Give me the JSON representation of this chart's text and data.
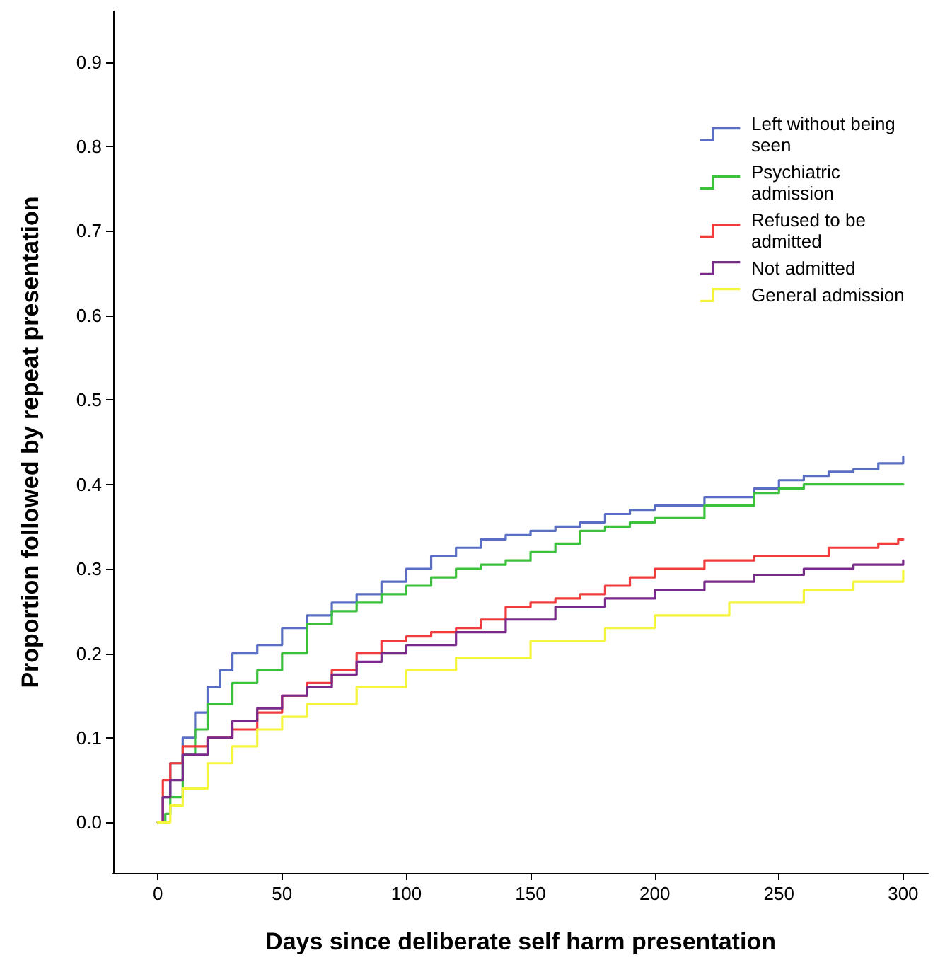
{
  "chart_data": {
    "type": "step",
    "xlabel": "Days since deliberate self harm presentation",
    "ylabel": "Proportion followed by repeat presentation",
    "xlim": [
      -18,
      310
    ],
    "ylim": [
      -0.06,
      0.96
    ],
    "xticks": [
      0,
      50,
      100,
      150,
      200,
      250,
      300
    ],
    "yticks": [
      {
        "value": 0,
        "label": "0.0"
      },
      {
        "value": 0.1,
        "label": "0.1"
      },
      {
        "value": 0.2,
        "label": "0.2"
      },
      {
        "value": 0.3,
        "label": "0.3"
      },
      {
        "value": 0.4,
        "label": "0.4"
      },
      {
        "value": 0.5,
        "label": "0.5"
      },
      {
        "value": 0.6,
        "label": "0.6"
      },
      {
        "value": 0.7,
        "label": "0.7"
      },
      {
        "value": 0.8,
        "label": "0.8"
      },
      {
        "value": 0.9,
        "label": "0.9"
      }
    ],
    "legend": "top right",
    "marker": "none",
    "line_style": "solid",
    "series": [
      {
        "name": "Left without being seen",
        "color": "#5a6fc4",
        "x": [
          0,
          2,
          5,
          10,
          15,
          20,
          25,
          30,
          40,
          50,
          60,
          70,
          80,
          90,
          100,
          110,
          120,
          130,
          140,
          150,
          160,
          170,
          180,
          190,
          200,
          220,
          240,
          250,
          260,
          270,
          280,
          290,
          300
        ],
        "values": [
          0,
          0.03,
          0.07,
          0.1,
          0.13,
          0.16,
          0.18,
          0.2,
          0.21,
          0.23,
          0.245,
          0.26,
          0.27,
          0.285,
          0.3,
          0.315,
          0.325,
          0.335,
          0.34,
          0.345,
          0.35,
          0.355,
          0.365,
          0.37,
          0.375,
          0.385,
          0.395,
          0.405,
          0.41,
          0.415,
          0.418,
          0.425,
          0.433
        ]
      },
      {
        "name": "Psychiatric admission",
        "color": "#3cc13c",
        "x": [
          0,
          3,
          5,
          10,
          15,
          20,
          30,
          40,
          50,
          60,
          70,
          80,
          90,
          100,
          110,
          120,
          130,
          140,
          150,
          160,
          170,
          180,
          190,
          200,
          220,
          240,
          250,
          260,
          300
        ],
        "values": [
          0,
          0.01,
          0.03,
          0.08,
          0.11,
          0.14,
          0.165,
          0.18,
          0.2,
          0.235,
          0.25,
          0.26,
          0.27,
          0.28,
          0.29,
          0.3,
          0.305,
          0.31,
          0.32,
          0.33,
          0.345,
          0.35,
          0.355,
          0.36,
          0.375,
          0.39,
          0.395,
          0.4,
          0.401
        ]
      },
      {
        "name": "Refused to be admitted",
        "color": "#f23c3c",
        "x": [
          0,
          2,
          5,
          10,
          20,
          30,
          40,
          50,
          60,
          70,
          80,
          90,
          100,
          110,
          120,
          130,
          140,
          150,
          160,
          170,
          180,
          190,
          200,
          220,
          240,
          260,
          270,
          290,
          298,
          300
        ],
        "values": [
          0,
          0.05,
          0.07,
          0.09,
          0.1,
          0.11,
          0.13,
          0.15,
          0.165,
          0.18,
          0.2,
          0.215,
          0.22,
          0.225,
          0.23,
          0.24,
          0.255,
          0.26,
          0.265,
          0.27,
          0.28,
          0.29,
          0.3,
          0.31,
          0.315,
          0.315,
          0.325,
          0.33,
          0.335,
          0.335
        ]
      },
      {
        "name": "Not admitted",
        "color": "#7a2a8a",
        "x": [
          0,
          2,
          5,
          10,
          20,
          30,
          40,
          50,
          60,
          70,
          80,
          90,
          100,
          120,
          140,
          160,
          180,
          200,
          220,
          240,
          260,
          280,
          300
        ],
        "values": [
          0,
          0.03,
          0.05,
          0.08,
          0.1,
          0.12,
          0.135,
          0.15,
          0.16,
          0.175,
          0.19,
          0.2,
          0.21,
          0.225,
          0.24,
          0.255,
          0.265,
          0.275,
          0.285,
          0.293,
          0.3,
          0.305,
          0.31
        ]
      },
      {
        "name": "General admission",
        "color": "#f5f53c",
        "x": [
          0,
          5,
          10,
          20,
          30,
          40,
          50,
          60,
          80,
          100,
          120,
          150,
          180,
          200,
          230,
          260,
          280,
          300
        ],
        "values": [
          0,
          0.02,
          0.04,
          0.07,
          0.09,
          0.11,
          0.125,
          0.14,
          0.16,
          0.18,
          0.195,
          0.215,
          0.23,
          0.245,
          0.26,
          0.275,
          0.285,
          0.298
        ]
      }
    ]
  }
}
